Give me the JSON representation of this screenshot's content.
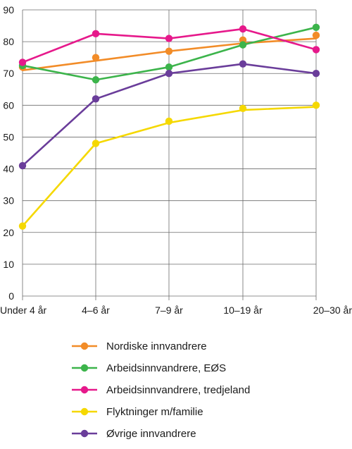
{
  "chart_data": {
    "type": "line",
    "title": "",
    "xlabel": "",
    "ylabel": "",
    "categories": [
      "Under 4 år",
      "4–6 år",
      "7–9 år",
      "10–19 år",
      "20–30 år"
    ],
    "ylim": [
      0,
      90
    ],
    "yticks": [
      0,
      10,
      20,
      30,
      40,
      50,
      60,
      70,
      80,
      90
    ],
    "grid": true,
    "legend_position": "bottom",
    "series": [
      {
        "name": "Nordiske innvandrere",
        "color": "#f28c28",
        "values": [
          72,
          75,
          77,
          80.5,
          82
        ],
        "trend": [
          71,
          74,
          77,
          79.5,
          81
        ]
      },
      {
        "name": "Arbeidsinnvandrere, EØS",
        "color": "#3cb44b",
        "values": [
          72.5,
          68,
          72,
          79,
          84.5
        ]
      },
      {
        "name": "Arbeidsinnvandrere, tredjeland",
        "color": "#e6198b",
        "values": [
          73.5,
          82.5,
          81,
          84,
          77.5
        ]
      },
      {
        "name": "Flyktninger m/familie",
        "color": "#f5d800",
        "values": [
          22,
          48,
          55,
          59,
          60
        ],
        "trend": [
          22,
          48,
          54.5,
          58.5,
          59.5
        ]
      },
      {
        "name": "Øvrige innvandrere",
        "color": "#6a3d9a",
        "values": [
          41,
          62,
          70,
          73,
          70
        ]
      }
    ]
  }
}
